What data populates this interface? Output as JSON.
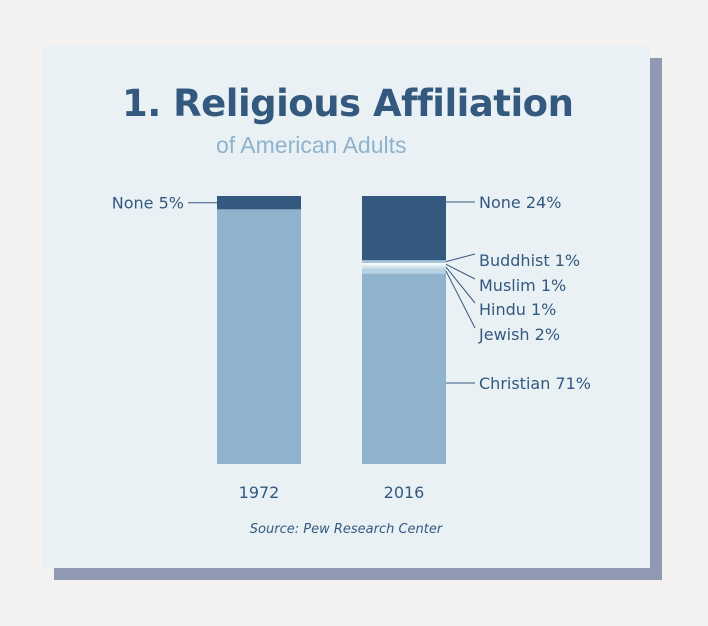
{
  "title": "1. Religious Affiliation",
  "subtitle": "of American Adults",
  "source": "Source: Pew Research Center",
  "colors": {
    "background": "#f3f2f1",
    "card": "#eaf1f5",
    "shadow": "#9099b4",
    "accent": "#34597e",
    "light": "#8fb2cd"
  },
  "chart_data": {
    "type": "bar",
    "stacked": true,
    "categories": [
      "1972",
      "2016"
    ],
    "segments": [
      {
        "category": "1972",
        "items": [
          {
            "label": "None",
            "value": 5,
            "text": "None 5%",
            "color": "#34597e"
          },
          {
            "label": "Other",
            "value": 95,
            "text": "",
            "color": "#8fb2cd"
          }
        ]
      },
      {
        "category": "2016",
        "items": [
          {
            "label": "None",
            "value": 24,
            "text": "None 24%",
            "color": "#34597e"
          },
          {
            "label": "Buddhist",
            "value": 1,
            "text": "Buddhist 1%",
            "color": "#a8c5d9"
          },
          {
            "label": "Muslim",
            "value": 1,
            "text": "Muslim 1%",
            "color": "#f2f7fa"
          },
          {
            "label": "Hindu",
            "value": 1,
            "text": "Hindu 1%",
            "color": "#d4e4ee"
          },
          {
            "label": "Jewish",
            "value": 2,
            "text": "Jewish 2%",
            "color": "#b8d1e3"
          },
          {
            "label": "Christian",
            "value": 71,
            "text": "Christian 71%",
            "color": "#8fb2cd"
          }
        ]
      }
    ]
  }
}
